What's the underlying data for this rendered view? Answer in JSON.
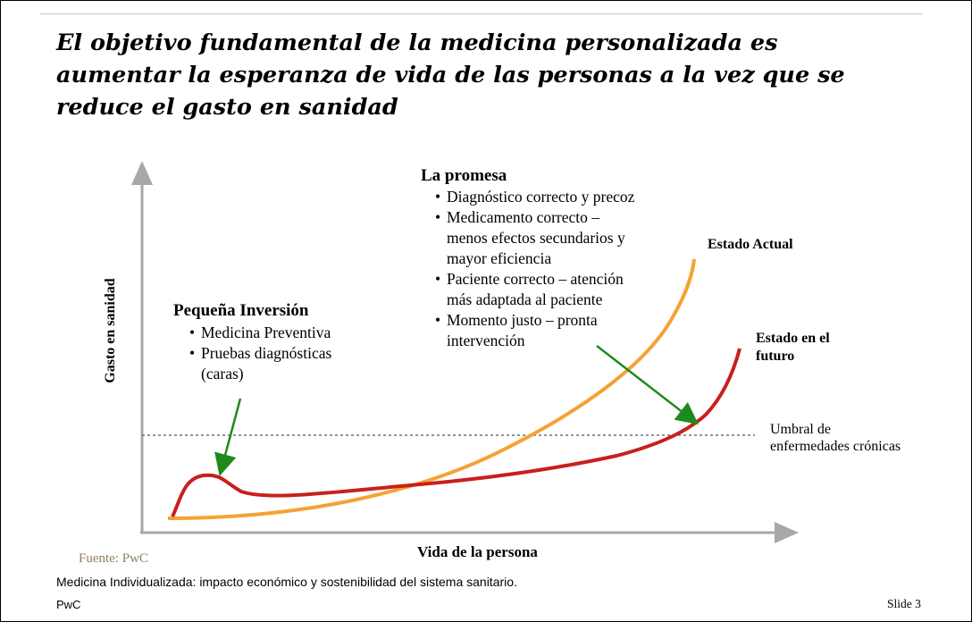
{
  "title_lines": [
    "El objetivo fundamental de la medicina personalizada es",
    "aumentar la esperanza de vida de las personas a la vez que se",
    "reduce el gasto en sanidad"
  ],
  "diagram": {
    "y_axis_label": "Gasto en sanidad",
    "x_axis_label": "Vida de la persona",
    "small_investment": {
      "heading": "Pequeña Inversión",
      "items": [
        "Medicina Preventiva",
        "Pruebas diagnósticas",
        "(caras)"
      ]
    },
    "promise": {
      "heading": "La promesa",
      "items": [
        "Diagnóstico correcto y precoz",
        "Medicamento correcto –",
        "menos efectos secundarios y",
        "mayor eficiencia",
        "Paciente correcto – atención",
        "más adaptada al paciente",
        "Momento justo – pronta",
        "intervención"
      ]
    },
    "current_state": "Estado Actual",
    "future_state": [
      "Estado en el",
      "futuro"
    ],
    "threshold": [
      "Umbral de",
      "enfermedades crónicas"
    ],
    "colors": {
      "current_curve": "#f5a234",
      "future_curve": "#c8201d",
      "arrows": "#1e8a1e",
      "axes": "#a8a8a8",
      "threshold_line": "#555555"
    }
  },
  "source": "Fuente: PwC",
  "footer": {
    "description": "Medicina Individualizada: impacto económico y sostenibilidad del sistema sanitario.",
    "left": "PwC",
    "right": "Slide 3"
  }
}
